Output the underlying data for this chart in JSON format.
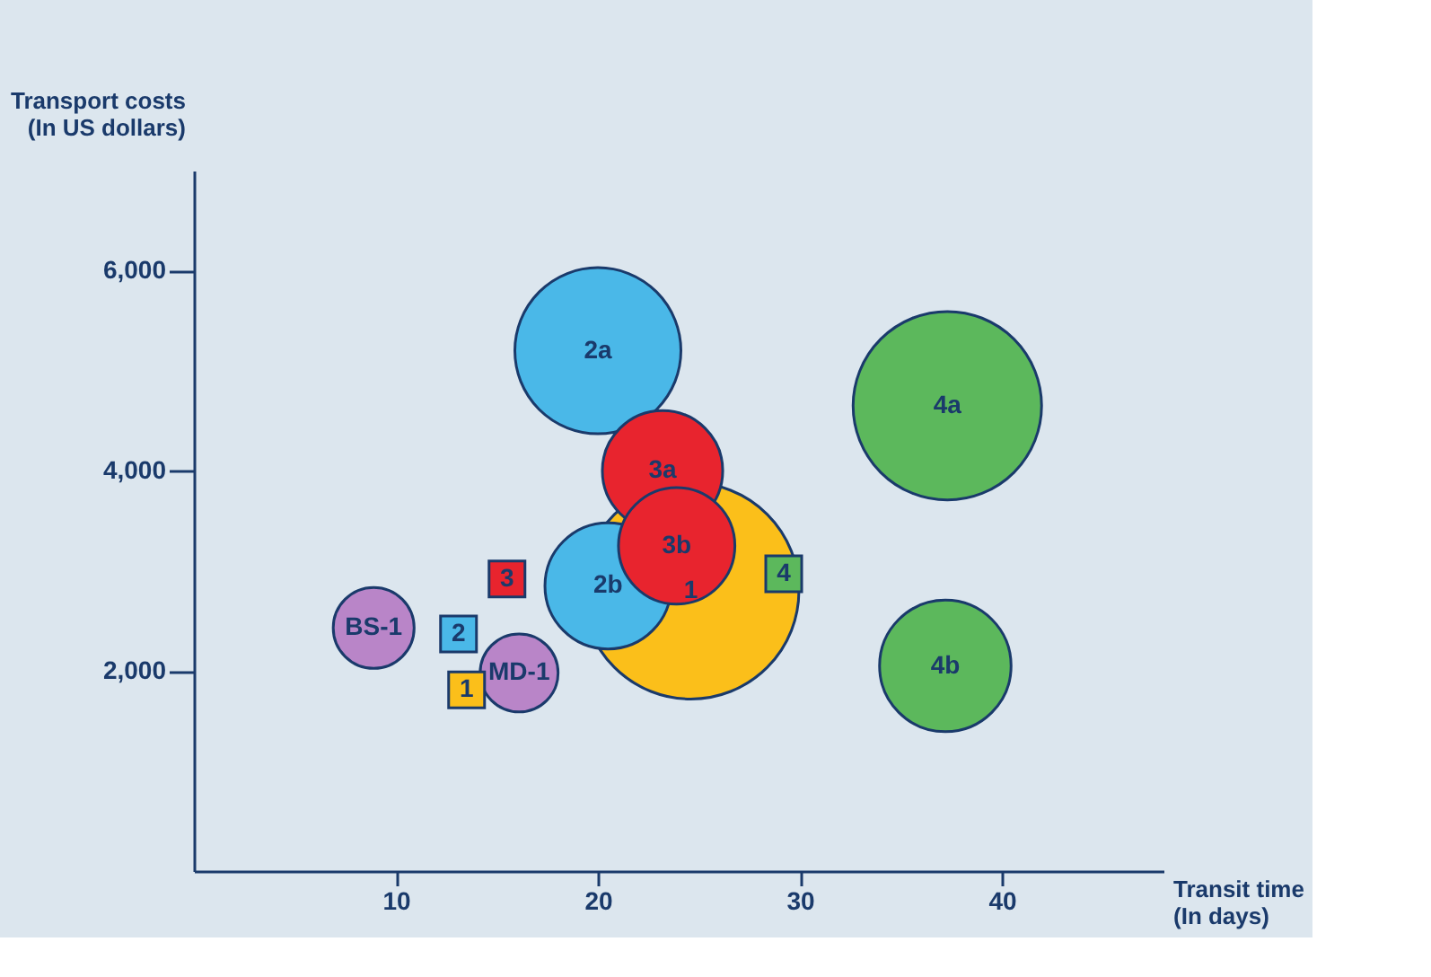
{
  "chart_data": {
    "type": "bubble",
    "xlabel": "Transit time\n(In days)",
    "ylabel": "Transport costs\n(In US dollars)",
    "xlim": [
      0,
      48
    ],
    "ylim": [
      0,
      7000
    ],
    "xticks": [
      10,
      20,
      30,
      40
    ],
    "yticks": [
      {
        "value": 2000,
        "label": "2,000"
      },
      {
        "value": 4000,
        "label": "4,000"
      },
      {
        "value": 6000,
        "label": "6,000"
      }
    ],
    "grid": false,
    "legend": false,
    "series": [
      {
        "type": "bubble",
        "marker": "circle",
        "color": "#fbbf1a",
        "x": [
          24.6
        ],
        "values": [
          2800
        ],
        "sizes": [
          1
        ]
      },
      {
        "type": "bubble",
        "marker": "circle",
        "color": "#4ab8e8",
        "x": [
          20.0,
          20.5
        ],
        "values": [
          5200,
          2850
        ],
        "sizes": [
          0.59,
          0.34
        ]
      },
      {
        "type": "bubble",
        "marker": "circle",
        "color": "#e8242e",
        "x": [
          23.2,
          23.9
        ],
        "values": [
          4000,
          3250
        ],
        "sizes": [
          0.31,
          0.29
        ]
      },
      {
        "type": "bubble",
        "marker": "circle",
        "color": "#5cb85c",
        "x": [
          37.3,
          37.2
        ],
        "values": [
          4650,
          2050
        ],
        "sizes": [
          0.76,
          0.37
        ]
      },
      {
        "type": "bubble",
        "marker": "circle",
        "color": "#b985c8",
        "x": [
          8.9,
          16.1
        ],
        "values": [
          2430,
          1980
        ],
        "sizes": [
          0.14,
          0.13
        ]
      },
      {
        "type": "scatter",
        "marker": "square",
        "colors": [
          "#fbbf1a",
          "#4ab8e8",
          "#e8242e",
          "#5cb85c"
        ],
        "x": [
          13.5,
          13.1,
          15.5,
          29.2
        ],
        "values": [
          1810,
          2370,
          2920,
          2970
        ]
      }
    ],
    "annotations": [
      {
        "text": "1",
        "x": 24.6,
        "y": 2800
      },
      {
        "text": "2a",
        "x": 20.0,
        "y": 5200
      },
      {
        "text": "2b",
        "x": 20.5,
        "y": 2850
      },
      {
        "text": "3a",
        "x": 23.2,
        "y": 4000
      },
      {
        "text": "3b",
        "x": 23.9,
        "y": 3250
      },
      {
        "text": "4a",
        "x": 37.3,
        "y": 4650
      },
      {
        "text": "4b",
        "x": 37.2,
        "y": 2050
      },
      {
        "text": "BS-1",
        "x": 8.9,
        "y": 2430
      },
      {
        "text": "MD-1",
        "x": 16.1,
        "y": 1980
      },
      {
        "text": "1",
        "x": 13.5,
        "y": 1810
      },
      {
        "text": "2",
        "x": 13.1,
        "y": 2370
      },
      {
        "text": "3",
        "x": 15.5,
        "y": 2920
      },
      {
        "text": "4",
        "x": 29.2,
        "y": 2970
      }
    ]
  }
}
